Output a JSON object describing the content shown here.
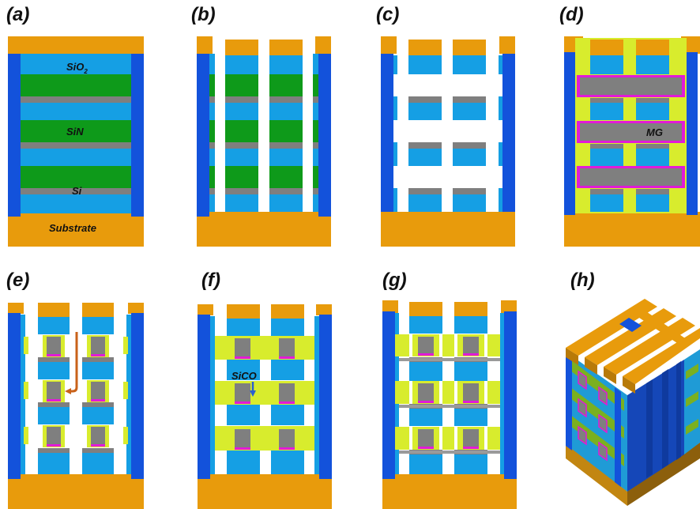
{
  "colors": {
    "orange": "#e89b0c",
    "cyan": "#159fe4",
    "green": "#0e9a1a",
    "gray": "#7f7f7f",
    "blue": "#1352db",
    "yellow": "#d8ec2d",
    "magenta": "#e21ad8",
    "arrow_orange": "#c9621a",
    "arrow_blue": "#2a5fd0"
  },
  "panels": [
    {
      "id": "a",
      "label": "(a)"
    },
    {
      "id": "b",
      "label": "(b)"
    },
    {
      "id": "c",
      "label": "(c)"
    },
    {
      "id": "d",
      "label": "(d)"
    },
    {
      "id": "e",
      "label": "(e)"
    },
    {
      "id": "f",
      "label": "(f)"
    },
    {
      "id": "g",
      "label": "(g)"
    },
    {
      "id": "h",
      "label": "(h)"
    }
  ],
  "labels": {
    "sio2_base": "SiO",
    "sio2_sub": "2",
    "sin": "SiN",
    "si": "Si",
    "substrate": "Substrate",
    "mg": "MG",
    "sico": "SiCO"
  }
}
